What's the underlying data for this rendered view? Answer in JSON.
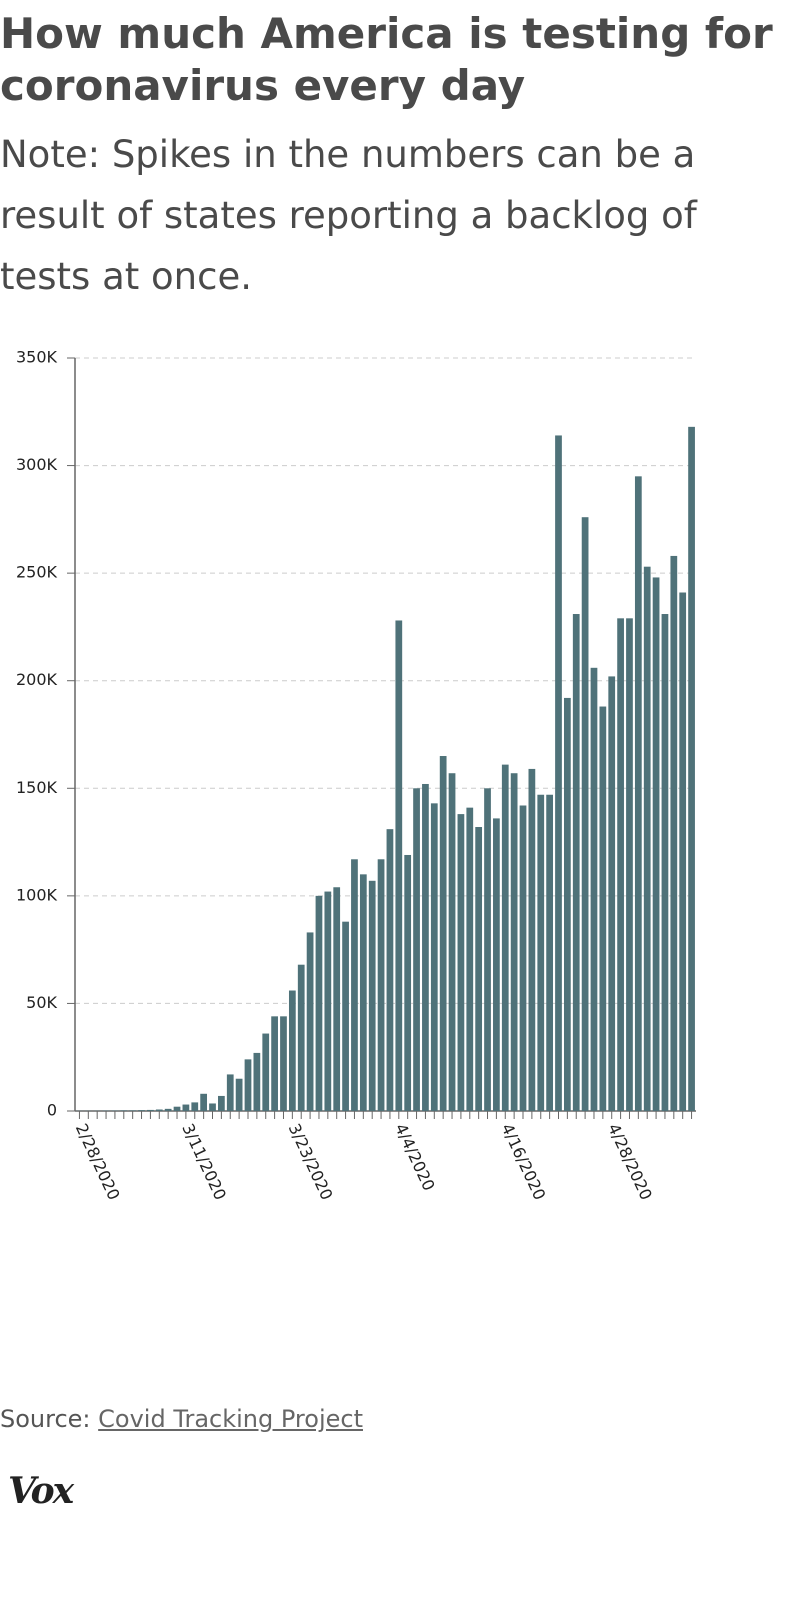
{
  "chart_data": {
    "type": "bar",
    "title": "How much America is testing for coronavirus every day",
    "subtitle": "Note: Spikes in the numbers can be a result of states reporting a backlog of tests at once.",
    "categories": [
      "2/28/2020",
      null,
      null,
      null,
      null,
      null,
      null,
      null,
      null,
      null,
      null,
      null,
      "3/11/2020",
      null,
      null,
      null,
      null,
      null,
      null,
      null,
      null,
      null,
      null,
      null,
      "3/23/2020",
      null,
      null,
      null,
      null,
      null,
      null,
      null,
      null,
      null,
      null,
      null,
      "4/4/2020",
      null,
      null,
      null,
      null,
      null,
      null,
      null,
      null,
      null,
      null,
      null,
      "4/16/2020",
      null,
      null,
      null,
      null,
      null,
      null,
      null,
      null,
      null,
      null,
      null,
      "4/28/2020",
      null,
      null,
      null,
      null,
      null,
      null,
      null,
      null,
      null
    ],
    "values": [
      100,
      100,
      100,
      200,
      200,
      300,
      300,
      400,
      500,
      700,
      1000,
      2000,
      3000,
      4000,
      8000,
      3500,
      7000,
      17000,
      15000,
      24000,
      27000,
      36000,
      44000,
      44000,
      56000,
      68000,
      83000,
      100000,
      102000,
      104000,
      88000,
      117000,
      110000,
      107000,
      117000,
      131000,
      228000,
      119000,
      150000,
      152000,
      143000,
      165000,
      157000,
      138000,
      141000,
      132000,
      150000,
      136000,
      161000,
      157000,
      142000,
      159000,
      147000,
      147000,
      314000,
      192000,
      231000,
      276000,
      206000,
      188000,
      202000,
      229000,
      229000,
      295000,
      253000,
      248000,
      231000,
      258000,
      241000,
      318000
    ],
    "color": "#4f7279",
    "ylim": [
      0,
      350000
    ],
    "yticks": [
      0,
      {
        "value": 50000,
        "label": "50K"
      },
      {
        "value": 100000,
        "label": "100K"
      },
      {
        "value": 150000,
        "label": "150K"
      },
      {
        "value": 200000,
        "label": "200K"
      },
      {
        "value": 250000,
        "label": "250K"
      },
      {
        "value": 300000,
        "label": "300K"
      },
      {
        "value": 350000,
        "label": "350K"
      }
    ],
    "grid": true
  },
  "source": {
    "label": "Source:",
    "link": "Covid Tracking Project"
  },
  "logo": "Vox"
}
